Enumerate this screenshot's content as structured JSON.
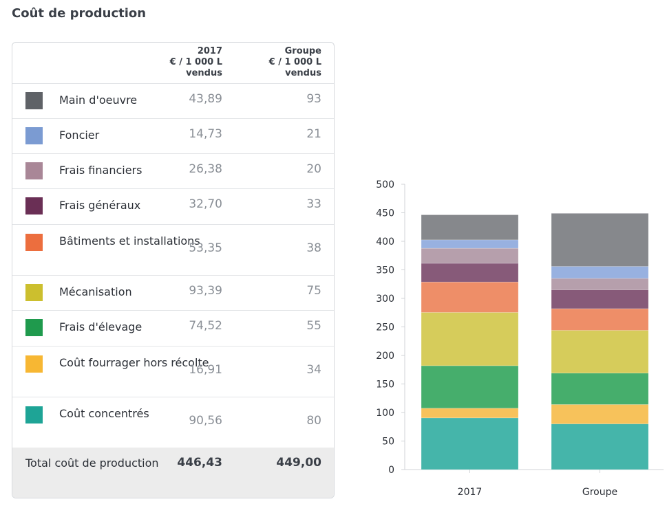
{
  "title": "Coût de production",
  "table": {
    "col1": [
      "2017",
      "€ / 1 000 L",
      "vendus"
    ],
    "col2": [
      "Groupe",
      "€ / 1 000 L",
      "vendus"
    ],
    "rows": [
      {
        "label": "Main d'oeuvre",
        "v2017": "43,89",
        "vgroupe": "93",
        "color": "#5f6267"
      },
      {
        "label": "Foncier",
        "v2017": "14,73",
        "vgroupe": "21",
        "color": "#7b9bd2"
      },
      {
        "label": "Frais financiers",
        "v2017": "26,38",
        "vgroupe": "20",
        "color": "#a98797"
      },
      {
        "label": "Frais généraux",
        "v2017": "32,70",
        "vgroupe": "33",
        "color": "#6a2f55"
      },
      {
        "label": "Bâtiments et installations",
        "v2017": "53,35",
        "vgroupe": "38",
        "color": "#ec6e3e"
      },
      {
        "label": "Mécanisation",
        "v2017": "93,39",
        "vgroupe": "75",
        "color": "#ccbf2e"
      },
      {
        "label": "Frais d'élevage",
        "v2017": "74,52",
        "vgroupe": "55",
        "color": "#1f9a4d"
      },
      {
        "label": "Coût fourrager hors récolte",
        "v2017": "16,91",
        "vgroupe": "34",
        "color": "#f7b733"
      },
      {
        "label": "Coût concentrés",
        "v2017": "90,56",
        "vgroupe": "80",
        "color": "#1ea496"
      }
    ],
    "total": {
      "label": "Total coût de production",
      "v2017": "446,43",
      "vgroupe": "449,00"
    }
  },
  "chart_data": {
    "type": "bar",
    "stacked": true,
    "categories": [
      "2017",
      "Groupe"
    ],
    "ylim": [
      0,
      500
    ],
    "yticks": [
      0,
      50,
      100,
      150,
      200,
      250,
      300,
      350,
      400,
      450,
      500
    ],
    "grid": false,
    "series": [
      {
        "name": "Coût concentrés",
        "values": [
          90.56,
          80
        ],
        "color": "#45b5aa"
      },
      {
        "name": "Coût fourrager hors récolte",
        "values": [
          16.91,
          34
        ],
        "color": "#f7c25b"
      },
      {
        "name": "Frais d'élevage",
        "values": [
          74.52,
          55
        ],
        "color": "#46ae6c"
      },
      {
        "name": "Mécanisation",
        "values": [
          93.39,
          75
        ],
        "color": "#d6cc5b"
      },
      {
        "name": "Bâtiments et installations",
        "values": [
          53.35,
          38
        ],
        "color": "#ee8e68"
      },
      {
        "name": "Frais généraux",
        "values": [
          32.7,
          33
        ],
        "color": "#875a79"
      },
      {
        "name": "Frais financiers",
        "values": [
          26.38,
          20
        ],
        "color": "#b69fac"
      },
      {
        "name": "Foncier",
        "values": [
          14.73,
          21
        ],
        "color": "#98b1e0"
      },
      {
        "name": "Main d'oeuvre",
        "values": [
          43.89,
          93
        ],
        "color": "#86888c"
      }
    ]
  }
}
